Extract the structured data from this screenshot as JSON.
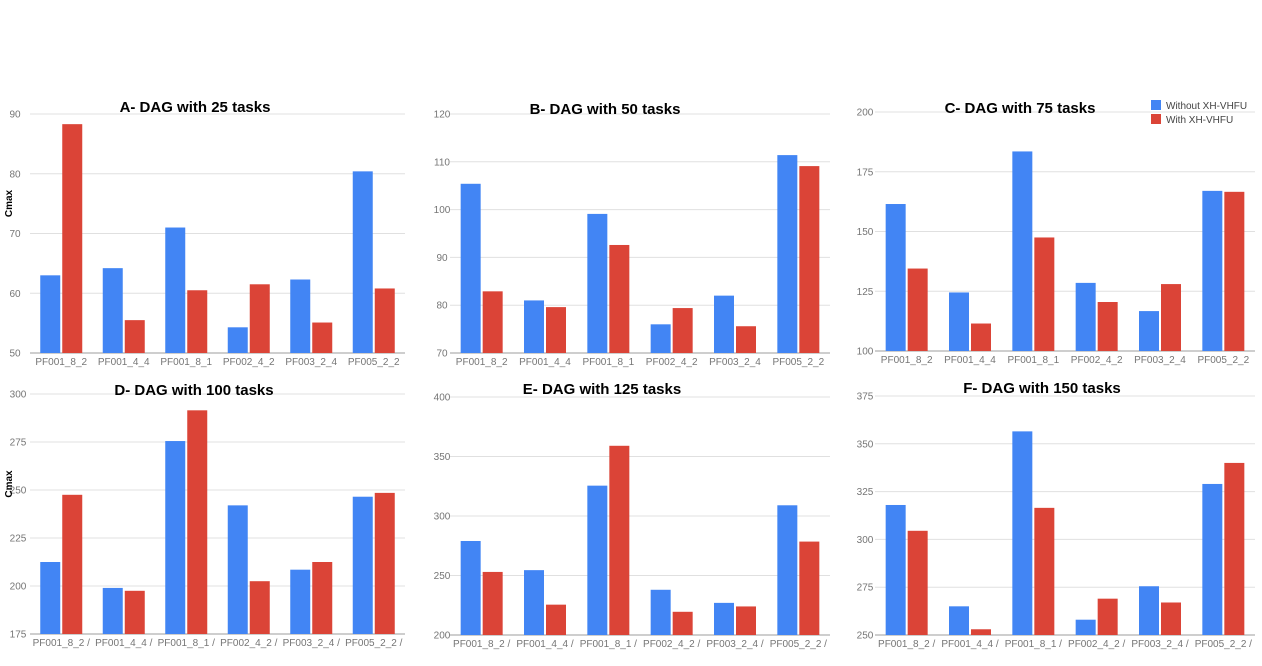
{
  "series_colors": [
    "#4285f4",
    "#db4437"
  ],
  "legend": [
    "Without XH-VHFU",
    "With XH-VHFU"
  ],
  "ylabel": "Cmax",
  "chart_data": [
    {
      "type": "bar",
      "title": "A- DAG with 25 tasks",
      "categories": [
        "PF001_8_2",
        "PF001_4_4",
        "PF001_8_1",
        "PF002_4_2",
        "PF003_2_4",
        "PF005_2_2"
      ],
      "series": [
        {
          "name": "Without XH-VHFU",
          "values": [
            63,
            64.2,
            71,
            54.3,
            62.3,
            80.4
          ]
        },
        {
          "name": "With XH-VHFU",
          "values": [
            88.3,
            55.5,
            60.5,
            61.5,
            55.1,
            60.8
          ]
        }
      ],
      "ylabel": "Cmax",
      "ylim": [
        50,
        90
      ],
      "yticks": [
        50,
        60,
        70,
        80,
        90
      ]
    },
    {
      "type": "bar",
      "title": "B- DAG with 50 tasks",
      "categories": [
        "PF001_8_2",
        "PF001_4_4",
        "PF001_8_1",
        "PF002_4_2",
        "PF003_2_4",
        "PF005_2_2"
      ],
      "series": [
        {
          "name": "Without XH-VHFU",
          "values": [
            105.4,
            81,
            99.1,
            76,
            82,
            111.4
          ]
        },
        {
          "name": "With XH-VHFU",
          "values": [
            82.9,
            79.6,
            92.6,
            79.4,
            75.6,
            109.1
          ]
        }
      ],
      "ylim": [
        70,
        120
      ],
      "yticks": [
        70,
        80,
        90,
        100,
        110,
        120
      ]
    },
    {
      "type": "bar",
      "title": "C- DAG with 75 tasks",
      "categories": [
        "PF001_8_2",
        "PF001_4_4",
        "PF001_8_1",
        "PF002_4_2",
        "PF003_2_4",
        "PF005_2_2"
      ],
      "series": [
        {
          "name": "Without XH-VHFU",
          "values": [
            161.5,
            124.5,
            183.5,
            128.5,
            116.7,
            167
          ]
        },
        {
          "name": "With XH-VHFU",
          "values": [
            134.5,
            111.5,
            147.5,
            120.5,
            128,
            166.6
          ]
        }
      ],
      "ylim": [
        100,
        200
      ],
      "yticks": [
        100,
        125,
        150,
        175,
        200
      ],
      "legend_position": "top-right"
    },
    {
      "type": "bar",
      "title": "D- DAG with 100 tasks",
      "categories": [
        "PF001_8_2 /",
        "PF001_4_4 /",
        "PF001_8_1 /",
        "PF002_4_2 /",
        "PF003_2_4 /",
        "PF005_2_2 /"
      ],
      "series": [
        {
          "name": "Without XH-VHFU",
          "values": [
            212.5,
            199,
            275.5,
            242,
            208.5,
            246.5
          ]
        },
        {
          "name": "With XH-VHFU",
          "values": [
            247.5,
            197.5,
            291.5,
            202.5,
            212.5,
            248.5
          ]
        }
      ],
      "ylabel": "Cmax",
      "ylim": [
        175,
        300
      ],
      "yticks": [
        175,
        200,
        225,
        250,
        275,
        300
      ]
    },
    {
      "type": "bar",
      "title": "E- DAG with 125 tasks",
      "categories": [
        "PF001_8_2 /",
        "PF001_4_4 /",
        "PF001_8_1 /",
        "PF002_4_2 /",
        "PF003_2_4 /",
        "PF005_2_2 /"
      ],
      "series": [
        {
          "name": "Without XH-VHFU",
          "values": [
            279,
            254.5,
            325.5,
            238,
            227,
            309
          ]
        },
        {
          "name": "With XH-VHFU",
          "values": [
            253,
            225.5,
            359,
            219.5,
            224,
            278.5
          ]
        }
      ],
      "ylim": [
        200,
        400
      ],
      "yticks": [
        200,
        250,
        300,
        350,
        400
      ]
    },
    {
      "type": "bar",
      "title": "F- DAG with 150 tasks",
      "categories": [
        "PF001_8_2 /",
        "PF001_4_4 /",
        "PF001_8_1 /",
        "PF002_4_2 /",
        "PF003_2_4 /",
        "PF005_2_2 /"
      ],
      "series": [
        {
          "name": "Without XH-VHFU",
          "values": [
            318,
            265,
            356.5,
            258,
            275.5,
            329
          ]
        },
        {
          "name": "With XH-VHFU",
          "values": [
            304.5,
            253,
            316.5,
            269,
            267,
            340
          ]
        }
      ],
      "ylim": [
        250,
        375
      ],
      "yticks": [
        250,
        275,
        300,
        325,
        350,
        375
      ]
    }
  ]
}
